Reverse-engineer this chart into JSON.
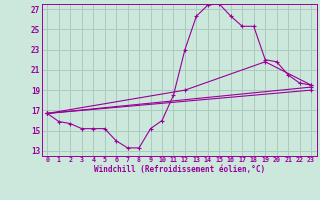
{
  "bg_color": "#cce8dd",
  "grid_color": "#aaccbb",
  "line_color": "#990099",
  "xlabel": "Windchill (Refroidissement éolien,°C)",
  "xlim": [
    -0.5,
    23.5
  ],
  "ylim": [
    12.5,
    27.5
  ],
  "xtick_labels": [
    "0",
    "1",
    "2",
    "3",
    "4",
    "5",
    "6",
    "7",
    "8",
    "9",
    "10",
    "11",
    "12",
    "13",
    "14",
    "15",
    "16",
    "17",
    "18",
    "19",
    "20",
    "21",
    "22",
    "23"
  ],
  "xtick_vals": [
    0,
    1,
    2,
    3,
    4,
    5,
    6,
    7,
    8,
    9,
    10,
    11,
    12,
    13,
    14,
    15,
    16,
    17,
    18,
    19,
    20,
    21,
    22,
    23
  ],
  "ytick_vals": [
    13,
    15,
    17,
    19,
    21,
    23,
    25,
    27
  ],
  "series": [
    {
      "x": [
        0,
        1,
        2,
        3,
        4,
        5,
        6,
        7,
        8,
        9,
        10,
        11,
        12,
        13,
        14,
        15,
        16,
        17,
        18,
        19,
        20,
        21,
        22,
        23
      ],
      "y": [
        16.7,
        15.9,
        15.7,
        15.2,
        15.2,
        15.2,
        14.0,
        13.3,
        13.3,
        15.2,
        16.0,
        18.5,
        23.0,
        26.3,
        27.4,
        27.5,
        26.3,
        25.3,
        25.3,
        22.0,
        21.8,
        20.5,
        19.7,
        19.5
      ]
    },
    {
      "x": [
        0,
        12,
        19,
        23
      ],
      "y": [
        16.7,
        19.0,
        21.8,
        19.5
      ]
    },
    {
      "x": [
        0,
        23
      ],
      "y": [
        16.7,
        19.3
      ]
    },
    {
      "x": [
        0,
        23
      ],
      "y": [
        16.7,
        19.0
      ]
    }
  ]
}
